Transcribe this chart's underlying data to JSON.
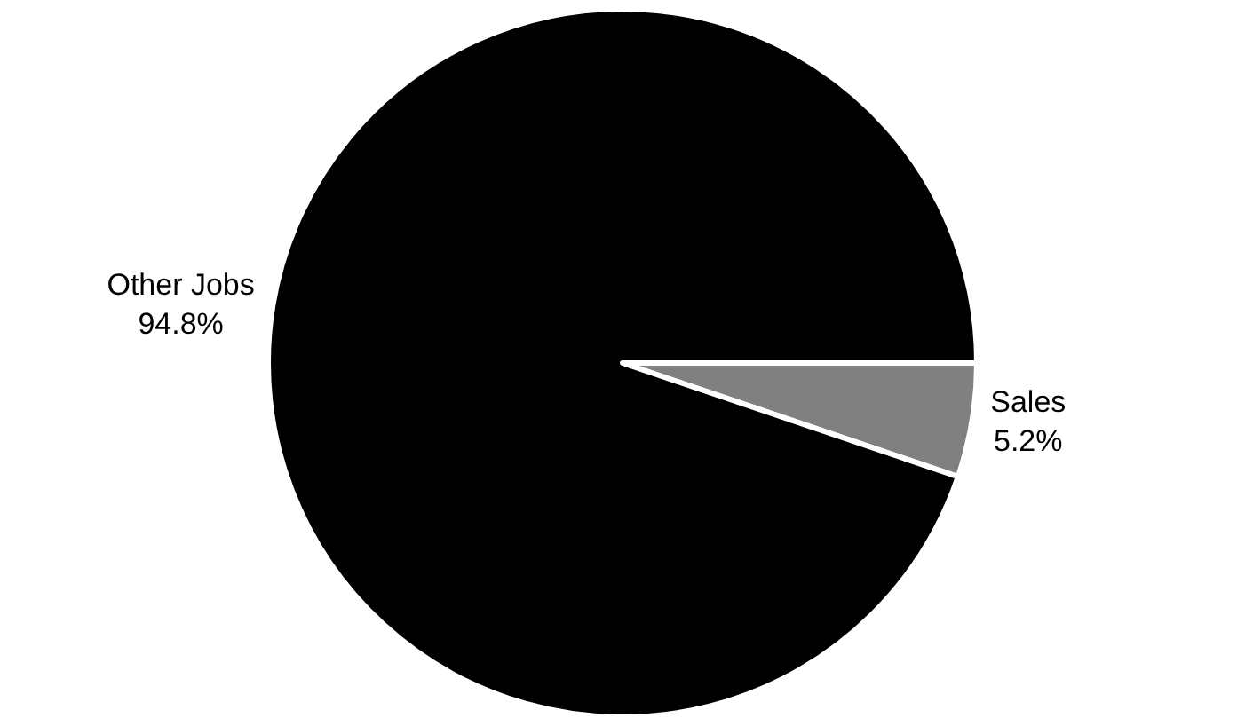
{
  "chart_data": {
    "type": "pie",
    "categories": [
      "Sales",
      "Other Jobs"
    ],
    "values": [
      5.2,
      94.8
    ],
    "value_labels": [
      "5.2%",
      "94.8%"
    ],
    "colors": [
      "#808080",
      "#000000"
    ]
  }
}
